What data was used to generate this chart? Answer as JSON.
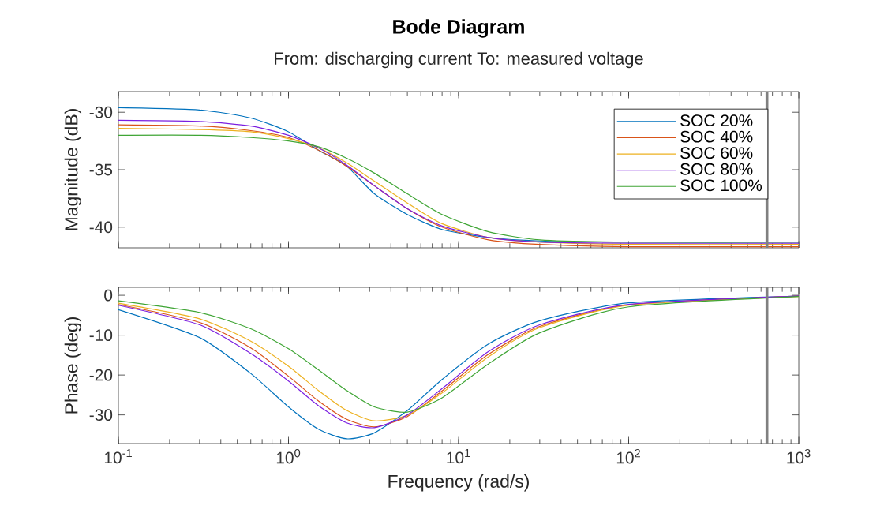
{
  "chart_data": [
    {
      "type": "line",
      "title": "Bode Diagram",
      "subtitle": "From: discharging current  To: measured voltage",
      "ylabel": "Magnitude (dB)",
      "log": "x",
      "xlim": [
        0.1,
        1000
      ],
      "xticks": [
        {
          "value": 0.1,
          "label": null
        },
        {
          "value": 1,
          "label": null
        },
        {
          "value": 10,
          "label": null
        },
        {
          "value": 100,
          "label": null
        },
        {
          "value": 1000,
          "label": null
        }
      ],
      "ylim": [
        -41.8,
        -28.2
      ],
      "yticks": [
        -40,
        -35,
        -30
      ],
      "tick_labels": "y",
      "legend": "top right",
      "x": [
        0.1,
        0.3,
        0.6,
        1,
        1.5,
        2.2,
        3.2,
        5,
        8,
        15,
        30,
        100,
        1000
      ],
      "ref_lines": [
        {
          "axis": "x",
          "value": 650,
          "color": "#808080"
        }
      ],
      "series": [
        {
          "name": "SOC 20%",
          "color": "#0072bd",
          "values": [
            -29.6,
            -29.8,
            -30.5,
            -31.7,
            -33.3,
            -34.7,
            -37.1,
            -38.9,
            -40.2,
            -40.9,
            -41.2,
            -41.3,
            -41.3
          ]
        },
        {
          "name": "SOC 40%",
          "color": "#d95319",
          "values": [
            -31.1,
            -31.2,
            -31.6,
            -32.2,
            -33.3,
            -34.7,
            -36.4,
            -38.4,
            -40.0,
            -41.1,
            -41.5,
            -41.7,
            -41.7
          ]
        },
        {
          "name": "SOC 60%",
          "color": "#edb120",
          "values": [
            -31.4,
            -31.5,
            -31.7,
            -32.3,
            -33.1,
            -34.4,
            -36.0,
            -37.9,
            -39.7,
            -40.9,
            -41.3,
            -41.5,
            -41.5
          ]
        },
        {
          "name": "SOC 80%",
          "color": "#7b1fe0",
          "values": [
            -30.7,
            -30.8,
            -31.2,
            -32.0,
            -33.1,
            -34.6,
            -36.4,
            -38.4,
            -39.9,
            -40.9,
            -41.3,
            -41.4,
            -41.4
          ]
        },
        {
          "name": "SOC 100%",
          "color": "#3fa535",
          "values": [
            -32.0,
            -32.0,
            -32.2,
            -32.5,
            -33.0,
            -34.0,
            -35.3,
            -37.1,
            -38.9,
            -40.4,
            -41.1,
            -41.3,
            -41.3
          ]
        }
      ]
    },
    {
      "type": "line",
      "xlabel": "Frequency (rad/s)",
      "ylabel": "Phase (deg)",
      "log": "x",
      "xlim": [
        0.1,
        1000
      ],
      "xticks": [
        {
          "value": 0.1,
          "label": "10$^{-1}$"
        },
        {
          "value": 1,
          "label": "10$^{0}$"
        },
        {
          "value": 10,
          "label": "10$^{1}$"
        },
        {
          "value": 100,
          "label": "10$^{2}$"
        },
        {
          "value": 1000,
          "label": "10$^{3}$"
        }
      ],
      "ylim": [
        -37.2,
        2
      ],
      "yticks": [
        -30,
        -20,
        -10,
        0
      ],
      "x": [
        0.1,
        0.3,
        0.6,
        1,
        1.5,
        2.2,
        3.2,
        5,
        8,
        15,
        30,
        100,
        1000
      ],
      "ref_lines": [
        {
          "axis": "x",
          "value": 650,
          "color": "#808080"
        }
      ],
      "series": [
        {
          "color": "#0072bd",
          "values": [
            -3.6,
            -10.6,
            -19.6,
            -28.0,
            -33.6,
            -36.0,
            -34.5,
            -28.9,
            -21.1,
            -12.2,
            -6.4,
            -1.9,
            -0.2
          ]
        },
        {
          "color": "#d95319",
          "values": [
            -2.3,
            -6.8,
            -13.2,
            -20.3,
            -26.5,
            -31.1,
            -33.0,
            -30.4,
            -24.0,
            -14.8,
            -7.8,
            -2.4,
            -0.2
          ]
        },
        {
          "color": "#edb120",
          "values": [
            -2.0,
            -5.9,
            -11.5,
            -17.8,
            -23.9,
            -28.9,
            -31.5,
            -30.1,
            -24.5,
            -15.4,
            -8.1,
            -2.5,
            -0.3
          ]
        },
        {
          "color": "#7b1fe0",
          "values": [
            -2.5,
            -7.4,
            -14.6,
            -21.5,
            -27.7,
            -32.0,
            -33.2,
            -30.0,
            -23.4,
            -14.1,
            -7.4,
            -2.3,
            -0.2
          ]
        },
        {
          "color": "#3fa535",
          "values": [
            -1.4,
            -4.3,
            -8.4,
            -13.4,
            -18.7,
            -23.9,
            -28.0,
            -29.3,
            -25.7,
            -17.2,
            -9.4,
            -2.9,
            -0.3
          ]
        }
      ]
    }
  ]
}
